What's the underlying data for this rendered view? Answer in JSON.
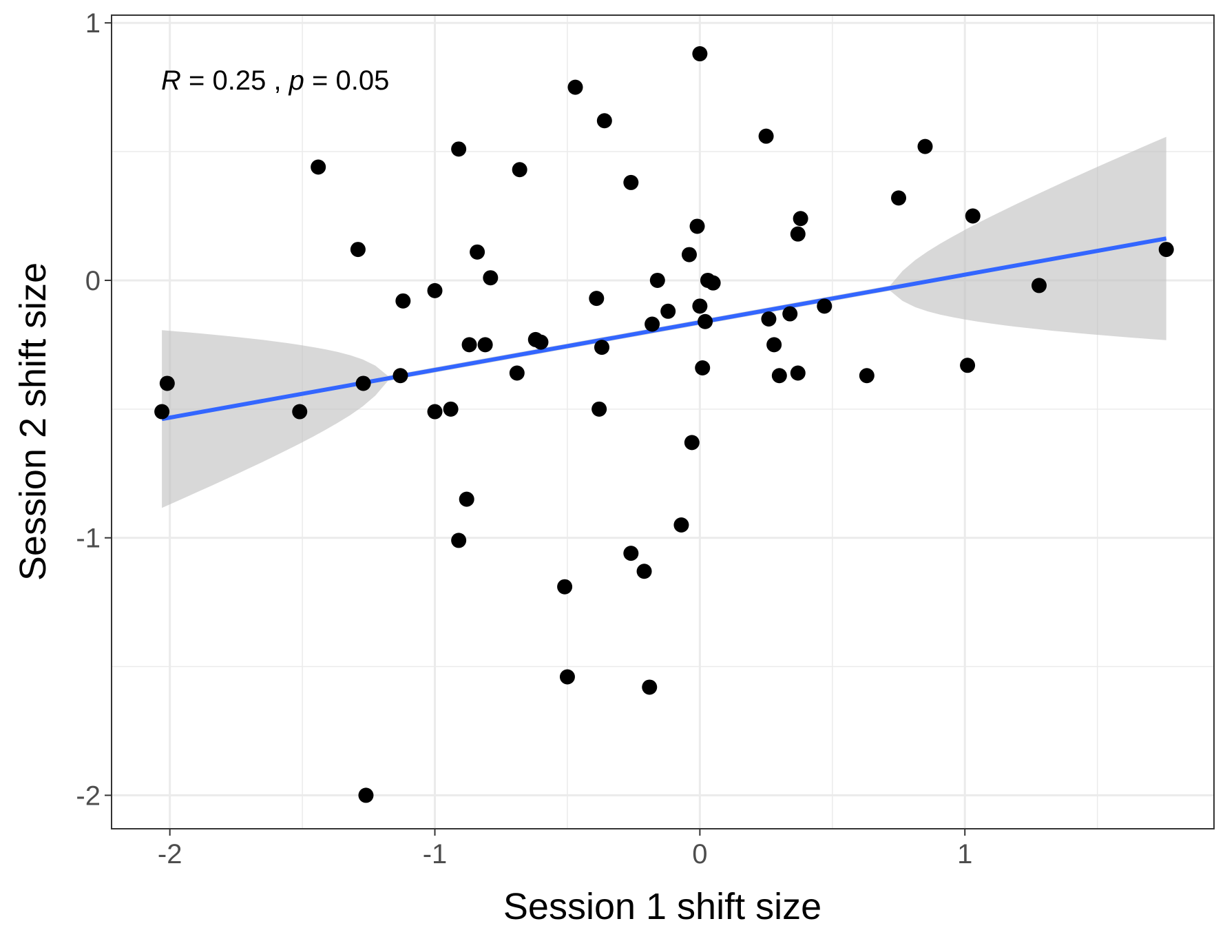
{
  "chart_data": {
    "type": "scatter",
    "xlabel": "Session 1 shift size",
    "ylabel": "Session 2 shift size",
    "xlim": [
      -2.22,
      1.94
    ],
    "ylim": [
      -2.13,
      1.03
    ],
    "x_ticks": [
      -2,
      -1,
      0,
      1
    ],
    "x_tick_labels": [
      "-2",
      "-1",
      "0",
      "1"
    ],
    "y_ticks": [
      -2,
      -1,
      0,
      1
    ],
    "y_tick_labels": [
      "-2",
      "-1",
      "0",
      "1"
    ],
    "grid": true,
    "annotation": {
      "r_symbol": "R",
      "r_text": " = 0.25 , ",
      "p_symbol": "p",
      "p_text": " = 0.05"
    },
    "regression": {
      "x_range": [
        -2.03,
        1.76
      ],
      "slope": 0.185,
      "intercept": -0.163,
      "ci_lower": [
        -0.88,
        -0.23
      ],
      "ci_upper": [
        -0.19,
        0.56
      ],
      "line_color": "#3366FF",
      "band_color": "#BEBEBE"
    },
    "point_color": "#000000",
    "points": [
      [
        0.0,
        0.88
      ],
      [
        -0.47,
        0.75
      ],
      [
        -0.36,
        0.62
      ],
      [
        0.25,
        0.56
      ],
      [
        0.85,
        0.52
      ],
      [
        -0.91,
        0.51
      ],
      [
        -1.44,
        0.44
      ],
      [
        -0.68,
        0.43
      ],
      [
        -0.26,
        0.38
      ],
      [
        0.75,
        0.32
      ],
      [
        1.03,
        0.25
      ],
      [
        0.38,
        0.24
      ],
      [
        -0.01,
        0.21
      ],
      [
        0.37,
        0.18
      ],
      [
        -1.29,
        0.12
      ],
      [
        1.76,
        0.12
      ],
      [
        -0.84,
        0.11
      ],
      [
        -0.04,
        0.1
      ],
      [
        -0.79,
        0.01
      ],
      [
        -0.16,
        0.0
      ],
      [
        0.03,
        0.0
      ],
      [
        0.05,
        -0.01
      ],
      [
        1.28,
        -0.02
      ],
      [
        -1.0,
        -0.04
      ],
      [
        -0.39,
        -0.07
      ],
      [
        -1.12,
        -0.08
      ],
      [
        0.0,
        -0.1
      ],
      [
        0.47,
        -0.1
      ],
      [
        -0.12,
        -0.12
      ],
      [
        0.34,
        -0.13
      ],
      [
        0.26,
        -0.15
      ],
      [
        0.02,
        -0.16
      ],
      [
        -0.18,
        -0.17
      ],
      [
        -0.62,
        -0.23
      ],
      [
        -0.6,
        -0.24
      ],
      [
        -0.87,
        -0.25
      ],
      [
        -0.81,
        -0.25
      ],
      [
        -0.37,
        -0.26
      ],
      [
        0.28,
        -0.25
      ],
      [
        1.01,
        -0.33
      ],
      [
        0.01,
        -0.34
      ],
      [
        -0.69,
        -0.36
      ],
      [
        0.3,
        -0.37
      ],
      [
        0.37,
        -0.36
      ],
      [
        0.63,
        -0.37
      ],
      [
        -1.13,
        -0.37
      ],
      [
        -1.27,
        -0.4
      ],
      [
        -2.01,
        -0.4
      ],
      [
        -2.03,
        -0.51
      ],
      [
        -1.51,
        -0.51
      ],
      [
        -1.0,
        -0.51
      ],
      [
        -0.94,
        -0.5
      ],
      [
        -0.38,
        -0.5
      ],
      [
        -0.03,
        -0.63
      ],
      [
        -0.88,
        -0.85
      ],
      [
        -0.07,
        -0.95
      ],
      [
        -0.91,
        -1.01
      ],
      [
        -0.26,
        -1.06
      ],
      [
        -0.21,
        -1.13
      ],
      [
        -0.51,
        -1.19
      ],
      [
        -0.5,
        -1.54
      ],
      [
        -0.19,
        -1.58
      ],
      [
        -1.26,
        -2.0
      ]
    ]
  }
}
